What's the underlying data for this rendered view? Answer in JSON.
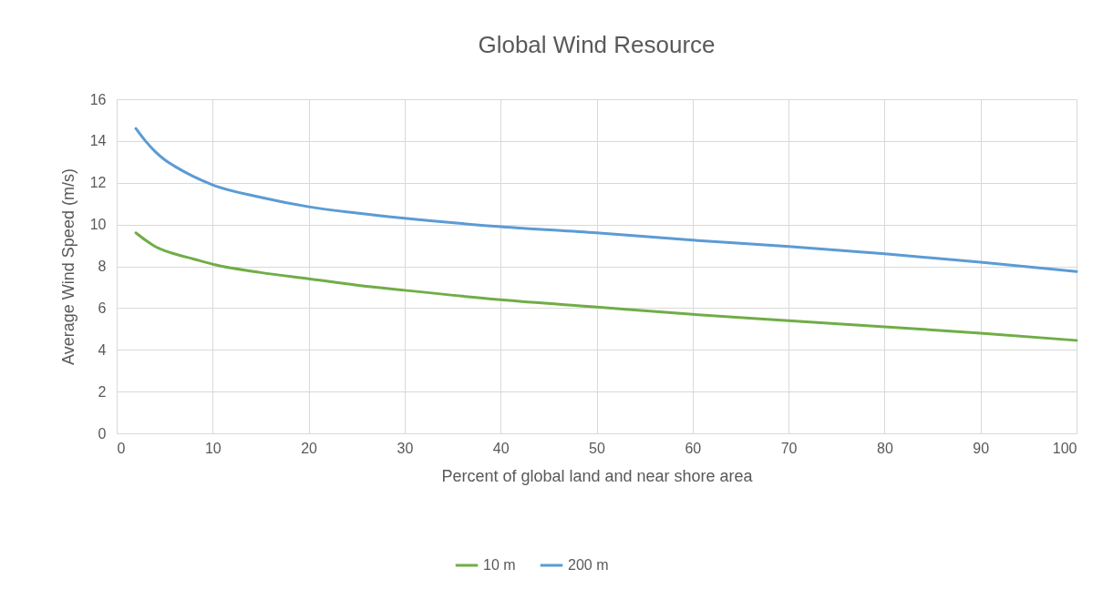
{
  "chart_data": {
    "type": "line",
    "title": "Global Wind Resource",
    "xlabel": "Percent of global land and near shore area",
    "ylabel": "Average Wind Speed (m/s)",
    "x": [
      2,
      3,
      4,
      5,
      6,
      8,
      10,
      15,
      20,
      25,
      30,
      40,
      50,
      60,
      70,
      80,
      90,
      100
    ],
    "series": [
      {
        "name": "10 m",
        "color": "#70ad47",
        "values": [
          9.6,
          9.25,
          8.95,
          8.75,
          8.6,
          8.35,
          8.1,
          7.7,
          7.4,
          7.1,
          6.85,
          6.4,
          6.05,
          5.7,
          5.4,
          5.1,
          4.8,
          4.45
        ]
      },
      {
        "name": "200 m",
        "color": "#5b9bd5",
        "values": [
          14.6,
          14.0,
          13.5,
          13.1,
          12.8,
          12.3,
          11.9,
          11.3,
          10.85,
          10.55,
          10.3,
          9.9,
          9.6,
          9.25,
          8.95,
          8.6,
          8.2,
          7.75
        ]
      }
    ],
    "xlim": [
      0,
      100
    ],
    "xticks": [
      0,
      10,
      20,
      30,
      40,
      50,
      60,
      70,
      80,
      90,
      100
    ],
    "ylim": [
      0,
      16
    ],
    "yticks": [
      0,
      2,
      4,
      6,
      8,
      10,
      12,
      14,
      16
    ],
    "grid": true,
    "legend": "bottom",
    "marker": "none",
    "line_style": "solid"
  }
}
